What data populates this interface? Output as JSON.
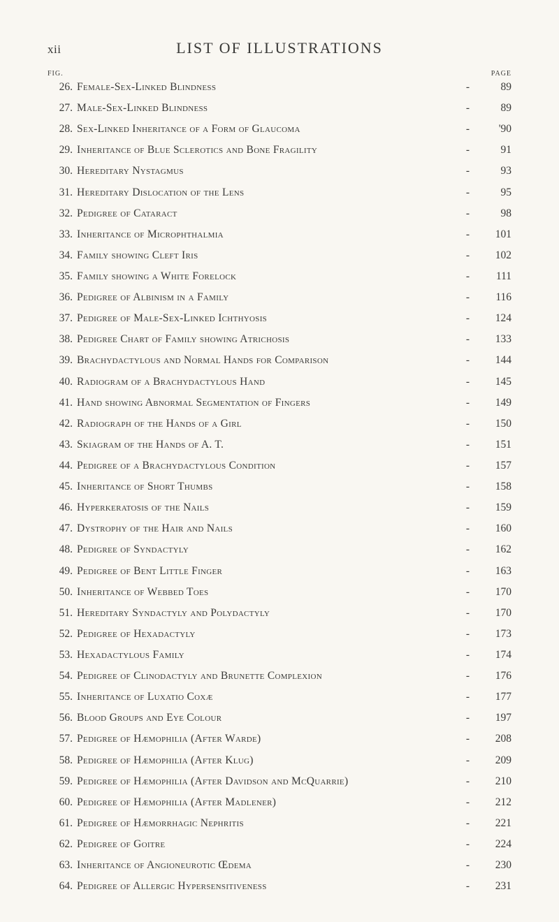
{
  "roman_page": "xii",
  "title": "LIST OF ILLUSTRATIONS",
  "col_fig_label": "FIG.",
  "col_page_label": "PAGE",
  "style": {
    "background_color": "#f9f7f2",
    "text_color": "#3a3a38",
    "title_fontsize": 22,
    "body_fontsize": 15.5,
    "col_label_fontsize": 10,
    "font_family": "Georgia, Times New Roman, serif",
    "small_caps": true,
    "line_spacing": 9.2
  },
  "entries": [
    {
      "n": "26.",
      "t": "Female-Sex-Linked Blindness",
      "p": "89"
    },
    {
      "n": "27.",
      "t": "Male-Sex-Linked Blindness",
      "p": "89"
    },
    {
      "n": "28.",
      "t": "Sex-Linked Inheritance of a Form of Glaucoma",
      "p": "'90"
    },
    {
      "n": "29.",
      "t": "Inheritance of Blue Sclerotics and Bone Fragility",
      "p": "91"
    },
    {
      "n": "30.",
      "t": "Hereditary Nystagmus",
      "p": "93"
    },
    {
      "n": "31.",
      "t": "Hereditary Dislocation of the Lens",
      "p": "95"
    },
    {
      "n": "32.",
      "t": "Pedigree of Cataract",
      "p": "98"
    },
    {
      "n": "33.",
      "t": "Inheritance of Microphthalmia",
      "p": "101"
    },
    {
      "n": "34.",
      "t": "Family showing Cleft Iris",
      "p": "102"
    },
    {
      "n": "35.",
      "t": "Family showing a White Forelock",
      "p": "111"
    },
    {
      "n": "36.",
      "t": "Pedigree of Albinism in a Family",
      "p": "116"
    },
    {
      "n": "37.",
      "t": "Pedigree of Male-Sex-Linked Ichthyosis",
      "p": "124"
    },
    {
      "n": "38.",
      "t": "Pedigree Chart of Family showing Atrichosis",
      "p": "133"
    },
    {
      "n": "39.",
      "t": "Brachydactylous and Normal Hands for Comparison",
      "p": "144"
    },
    {
      "n": "40.",
      "t": "Radiogram of a Brachydactylous Hand",
      "p": "145"
    },
    {
      "n": "41.",
      "t": "Hand showing Abnormal Segmentation of Fingers",
      "p": "149"
    },
    {
      "n": "42.",
      "t": "Radiograph of the Hands of a Girl",
      "p": "150"
    },
    {
      "n": "43.",
      "t": "Skiagram of the Hands of A. T.",
      "p": "151"
    },
    {
      "n": "44.",
      "t": "Pedigree of a Brachydactylous Condition",
      "p": "157"
    },
    {
      "n": "45.",
      "t": "Inheritance of Short Thumbs",
      "p": "158"
    },
    {
      "n": "46.",
      "t": "Hyperkeratosis of the Nails",
      "p": "159"
    },
    {
      "n": "47.",
      "t": "Dystrophy of the Hair and Nails",
      "p": "160"
    },
    {
      "n": "48.",
      "t": "Pedigree of Syndactyly",
      "p": "162"
    },
    {
      "n": "49.",
      "t": "Pedigree of Bent Little Finger",
      "p": "163"
    },
    {
      "n": "50.",
      "t": "Inheritance of Webbed Toes",
      "p": "170"
    },
    {
      "n": "51.",
      "t": "Hereditary Syndactyly and Polydactyly",
      "p": "170"
    },
    {
      "n": "52.",
      "t": "Pedigree of Hexadactyly",
      "p": "173"
    },
    {
      "n": "53.",
      "t": "Hexadactylous Family",
      "p": "174"
    },
    {
      "n": "54.",
      "t": "Pedigree of Clinodactyly and Brunette Complexion",
      "p": "176"
    },
    {
      "n": "55.",
      "t": "Inheritance of Luxatio Coxæ",
      "p": "177"
    },
    {
      "n": "56.",
      "t": "Blood Groups and Eye Colour",
      "p": "197"
    },
    {
      "n": "57.",
      "t": "Pedigree of Hæmophilia (After Warde)",
      "p": "208"
    },
    {
      "n": "58.",
      "t": "Pedigree of Hæmophilia (After Klug)",
      "p": "209"
    },
    {
      "n": "59.",
      "t": "Pedigree of Hæmophilia (After Davidson and McQuarrie)",
      "p": "210"
    },
    {
      "n": "60.",
      "t": "Pedigree of Hæmophilia (After Madlener)",
      "p": "212"
    },
    {
      "n": "61.",
      "t": "Pedigree of Hæmorrhagic Nephritis",
      "p": "221"
    },
    {
      "n": "62.",
      "t": "Pedigree of Goitre",
      "p": "224"
    },
    {
      "n": "63.",
      "t": "Inheritance of Angioneurotic Œdema",
      "p": "230"
    },
    {
      "n": "64.",
      "t": "Pedigree of Allergic Hypersensitiveness",
      "p": "231"
    }
  ]
}
